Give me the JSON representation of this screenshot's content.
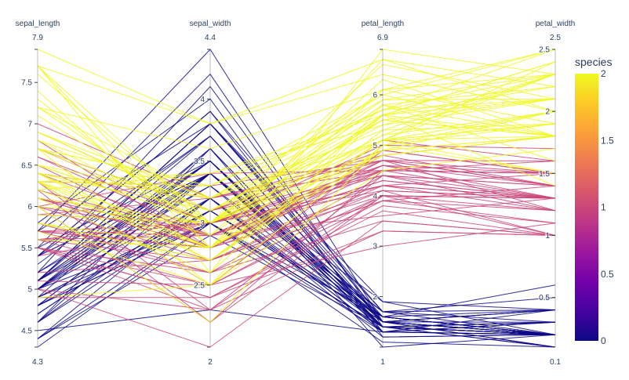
{
  "chart_data": {
    "type": "parallel_coordinates",
    "color_variable": "species",
    "axes": [
      {
        "key": "sepal_length",
        "label": "sepal_length",
        "range": [
          4.3,
          7.9
        ],
        "range_labels": [
          "4.3",
          "7.9"
        ],
        "ticks": [
          {
            "value": 4.5,
            "label": "4.5"
          },
          {
            "value": 5,
            "label": "5"
          },
          {
            "value": 5.5,
            "label": "5.5"
          },
          {
            "value": 6,
            "label": "6"
          },
          {
            "value": 6.5,
            "label": "6.5"
          },
          {
            "value": 7,
            "label": "7"
          },
          {
            "value": 7.5,
            "label": "7.5"
          }
        ]
      },
      {
        "key": "sepal_width",
        "label": "sepal_width",
        "range": [
          2,
          4.4
        ],
        "range_labels": [
          "2",
          "4.4"
        ],
        "ticks": [
          {
            "value": 2.5,
            "label": "2.5"
          },
          {
            "value": 3,
            "label": "3"
          },
          {
            "value": 3.5,
            "label": "3.5"
          },
          {
            "value": 4,
            "label": "4"
          }
        ]
      },
      {
        "key": "petal_length",
        "label": "petal_length",
        "range": [
          1,
          6.9
        ],
        "range_labels": [
          "1",
          "6.9"
        ],
        "ticks": [
          {
            "value": 2,
            "label": "2"
          },
          {
            "value": 3,
            "label": "3"
          },
          {
            "value": 4,
            "label": "4"
          },
          {
            "value": 5,
            "label": "5"
          },
          {
            "value": 6,
            "label": "6"
          }
        ]
      },
      {
        "key": "petal_width",
        "label": "petal_width",
        "range": [
          0.1,
          2.5
        ],
        "range_labels": [
          "0.1",
          "2.5"
        ],
        "ticks": [
          {
            "value": 0.5,
            "label": "0.5"
          },
          {
            "value": 1,
            "label": "1"
          },
          {
            "value": 1.5,
            "label": "1.5"
          },
          {
            "value": 2,
            "label": "2"
          },
          {
            "value": 2.5,
            "label": "2.5"
          }
        ]
      }
    ],
    "colorbar": {
      "title": "species",
      "range": [
        0,
        2
      ],
      "ticks": [
        {
          "value": 0,
          "label": "0"
        },
        {
          "value": 0.5,
          "label": "0.5"
        },
        {
          "value": 1,
          "label": "1"
        },
        {
          "value": 1.5,
          "label": "1.5"
        },
        {
          "value": 2,
          "label": "2"
        }
      ],
      "colorscale": [
        "#0d0887",
        "#46039f",
        "#7201a8",
        "#9c179e",
        "#bd3786",
        "#d8576b",
        "#ed7953",
        "#fb9f3a",
        "#fdca26",
        "#f0f921"
      ]
    },
    "records": [
      [
        5.1,
        3.5,
        1.4,
        0.2,
        0
      ],
      [
        4.9,
        3.0,
        1.4,
        0.2,
        0
      ],
      [
        4.7,
        3.2,
        1.3,
        0.2,
        0
      ],
      [
        4.6,
        3.1,
        1.5,
        0.2,
        0
      ],
      [
        5.0,
        3.6,
        1.4,
        0.2,
        0
      ],
      [
        5.4,
        3.9,
        1.7,
        0.4,
        0
      ],
      [
        4.6,
        3.4,
        1.4,
        0.3,
        0
      ],
      [
        5.0,
        3.4,
        1.5,
        0.2,
        0
      ],
      [
        4.4,
        2.9,
        1.4,
        0.2,
        0
      ],
      [
        4.9,
        3.1,
        1.5,
        0.1,
        0
      ],
      [
        5.4,
        3.7,
        1.5,
        0.2,
        0
      ],
      [
        4.8,
        3.4,
        1.6,
        0.2,
        0
      ],
      [
        4.8,
        3.0,
        1.4,
        0.1,
        0
      ],
      [
        4.3,
        3.0,
        1.1,
        0.1,
        0
      ],
      [
        5.8,
        4.0,
        1.2,
        0.2,
        0
      ],
      [
        5.7,
        4.4,
        1.5,
        0.4,
        0
      ],
      [
        5.4,
        3.9,
        1.3,
        0.4,
        0
      ],
      [
        5.1,
        3.5,
        1.4,
        0.3,
        0
      ],
      [
        5.7,
        3.8,
        1.7,
        0.3,
        0
      ],
      [
        5.1,
        3.8,
        1.5,
        0.3,
        0
      ],
      [
        5.4,
        3.4,
        1.7,
        0.2,
        0
      ],
      [
        5.1,
        3.7,
        1.5,
        0.4,
        0
      ],
      [
        4.6,
        3.6,
        1.0,
        0.2,
        0
      ],
      [
        5.1,
        3.3,
        1.7,
        0.5,
        0
      ],
      [
        4.8,
        3.4,
        1.9,
        0.2,
        0
      ],
      [
        5.0,
        3.0,
        1.6,
        0.2,
        0
      ],
      [
        5.0,
        3.4,
        1.6,
        0.4,
        0
      ],
      [
        5.2,
        3.5,
        1.5,
        0.2,
        0
      ],
      [
        5.2,
        3.4,
        1.4,
        0.2,
        0
      ],
      [
        4.7,
        3.2,
        1.6,
        0.2,
        0
      ],
      [
        4.8,
        3.1,
        1.6,
        0.2,
        0
      ],
      [
        5.4,
        3.4,
        1.5,
        0.4,
        0
      ],
      [
        5.2,
        4.1,
        1.5,
        0.1,
        0
      ],
      [
        5.5,
        4.2,
        1.4,
        0.2,
        0
      ],
      [
        4.9,
        3.1,
        1.5,
        0.2,
        0
      ],
      [
        5.0,
        3.2,
        1.2,
        0.2,
        0
      ],
      [
        5.5,
        3.5,
        1.3,
        0.2,
        0
      ],
      [
        4.9,
        3.6,
        1.4,
        0.1,
        0
      ],
      [
        4.4,
        3.0,
        1.3,
        0.2,
        0
      ],
      [
        5.1,
        3.4,
        1.5,
        0.2,
        0
      ],
      [
        5.0,
        3.5,
        1.3,
        0.3,
        0
      ],
      [
        4.5,
        2.3,
        1.3,
        0.3,
        0
      ],
      [
        4.4,
        3.2,
        1.3,
        0.2,
        0
      ],
      [
        5.0,
        3.5,
        1.6,
        0.6,
        0
      ],
      [
        5.1,
        3.8,
        1.9,
        0.4,
        0
      ],
      [
        4.8,
        3.0,
        1.4,
        0.3,
        0
      ],
      [
        5.1,
        3.8,
        1.6,
        0.2,
        0
      ],
      [
        4.6,
        3.2,
        1.4,
        0.2,
        0
      ],
      [
        5.3,
        3.7,
        1.5,
        0.2,
        0
      ],
      [
        5.0,
        3.3,
        1.4,
        0.2,
        0
      ],
      [
        7.0,
        3.2,
        4.7,
        1.4,
        1
      ],
      [
        6.4,
        3.2,
        4.5,
        1.5,
        1
      ],
      [
        6.9,
        3.1,
        4.9,
        1.5,
        1
      ],
      [
        5.5,
        2.3,
        4.0,
        1.3,
        1
      ],
      [
        6.5,
        2.8,
        4.6,
        1.5,
        1
      ],
      [
        5.7,
        2.8,
        4.5,
        1.3,
        1
      ],
      [
        6.3,
        3.3,
        4.7,
        1.6,
        1
      ],
      [
        4.9,
        2.4,
        3.3,
        1.0,
        1
      ],
      [
        6.6,
        2.9,
        4.6,
        1.3,
        1
      ],
      [
        5.2,
        2.7,
        3.9,
        1.4,
        1
      ],
      [
        5.0,
        2.0,
        3.5,
        1.0,
        1
      ],
      [
        5.9,
        3.0,
        4.2,
        1.5,
        1
      ],
      [
        6.0,
        2.2,
        4.0,
        1.0,
        1
      ],
      [
        6.1,
        2.9,
        4.7,
        1.4,
        1
      ],
      [
        5.6,
        2.9,
        3.6,
        1.3,
        1
      ],
      [
        6.7,
        3.1,
        4.4,
        1.4,
        1
      ],
      [
        5.6,
        3.0,
        4.5,
        1.5,
        1
      ],
      [
        5.8,
        2.7,
        4.1,
        1.0,
        1
      ],
      [
        6.2,
        2.2,
        4.5,
        1.5,
        1
      ],
      [
        5.6,
        2.5,
        3.9,
        1.1,
        1
      ],
      [
        5.9,
        3.2,
        4.8,
        1.8,
        1
      ],
      [
        6.1,
        2.8,
        4.0,
        1.3,
        1
      ],
      [
        6.3,
        2.5,
        4.9,
        1.5,
        1
      ],
      [
        6.1,
        2.8,
        4.7,
        1.2,
        1
      ],
      [
        6.4,
        2.9,
        4.3,
        1.3,
        1
      ],
      [
        6.6,
        3.0,
        4.4,
        1.4,
        1
      ],
      [
        6.8,
        2.8,
        4.8,
        1.4,
        1
      ],
      [
        6.7,
        3.0,
        5.0,
        1.7,
        1
      ],
      [
        6.0,
        2.9,
        4.5,
        1.5,
        1
      ],
      [
        5.7,
        2.6,
        3.5,
        1.0,
        1
      ],
      [
        5.5,
        2.4,
        3.8,
        1.1,
        1
      ],
      [
        5.5,
        2.4,
        3.7,
        1.0,
        1
      ],
      [
        5.8,
        2.7,
        3.9,
        1.2,
        1
      ],
      [
        6.0,
        2.7,
        5.1,
        1.6,
        1
      ],
      [
        5.4,
        3.0,
        4.5,
        1.5,
        1
      ],
      [
        6.0,
        3.4,
        4.5,
        1.6,
        1
      ],
      [
        6.7,
        3.1,
        4.7,
        1.5,
        1
      ],
      [
        6.3,
        2.3,
        4.4,
        1.3,
        1
      ],
      [
        5.6,
        3.0,
        4.1,
        1.3,
        1
      ],
      [
        5.5,
        2.5,
        4.0,
        1.3,
        1
      ],
      [
        5.5,
        2.6,
        4.4,
        1.2,
        1
      ],
      [
        6.1,
        3.0,
        4.6,
        1.4,
        1
      ],
      [
        5.8,
        2.6,
        4.0,
        1.2,
        1
      ],
      [
        5.0,
        2.3,
        3.3,
        1.0,
        1
      ],
      [
        5.6,
        2.7,
        4.2,
        1.3,
        1
      ],
      [
        5.7,
        3.0,
        4.2,
        1.2,
        1
      ],
      [
        5.7,
        2.9,
        4.2,
        1.3,
        1
      ],
      [
        6.2,
        2.9,
        4.3,
        1.3,
        1
      ],
      [
        5.1,
        2.5,
        3.0,
        1.1,
        1
      ],
      [
        5.7,
        2.8,
        4.1,
        1.3,
        1
      ],
      [
        6.3,
        3.3,
        6.0,
        2.5,
        2
      ],
      [
        5.8,
        2.7,
        5.1,
        1.9,
        2
      ],
      [
        7.1,
        3.0,
        5.9,
        2.1,
        2
      ],
      [
        6.3,
        2.9,
        5.6,
        1.8,
        2
      ],
      [
        6.5,
        3.0,
        5.8,
        2.2,
        2
      ],
      [
        7.6,
        3.0,
        6.6,
        2.1,
        2
      ],
      [
        4.9,
        2.5,
        4.5,
        1.7,
        2
      ],
      [
        7.3,
        2.9,
        6.3,
        1.8,
        2
      ],
      [
        6.7,
        2.5,
        5.8,
        1.8,
        2
      ],
      [
        7.2,
        3.6,
        6.1,
        2.5,
        2
      ],
      [
        6.5,
        3.2,
        5.1,
        2.0,
        2
      ],
      [
        6.4,
        2.7,
        5.3,
        1.9,
        2
      ],
      [
        6.8,
        3.0,
        5.5,
        2.1,
        2
      ],
      [
        5.7,
        2.5,
        5.0,
        2.0,
        2
      ],
      [
        5.8,
        2.8,
        5.1,
        2.4,
        2
      ],
      [
        6.4,
        3.2,
        5.3,
        2.3,
        2
      ],
      [
        6.5,
        3.0,
        5.5,
        1.8,
        2
      ],
      [
        7.7,
        3.8,
        6.7,
        2.2,
        2
      ],
      [
        7.7,
        2.6,
        6.9,
        2.3,
        2
      ],
      [
        6.0,
        2.2,
        5.0,
        1.5,
        2
      ],
      [
        6.9,
        3.2,
        5.7,
        2.3,
        2
      ],
      [
        5.6,
        2.8,
        4.9,
        2.0,
        2
      ],
      [
        7.7,
        2.8,
        6.7,
        2.0,
        2
      ],
      [
        6.3,
        2.7,
        4.9,
        1.8,
        2
      ],
      [
        6.7,
        3.3,
        5.7,
        2.1,
        2
      ],
      [
        7.2,
        3.2,
        6.0,
        1.8,
        2
      ],
      [
        6.2,
        2.8,
        4.8,
        1.8,
        2
      ],
      [
        6.1,
        3.0,
        4.9,
        1.8,
        2
      ],
      [
        6.4,
        2.8,
        5.6,
        2.1,
        2
      ],
      [
        7.2,
        3.0,
        5.8,
        1.6,
        2
      ],
      [
        7.4,
        2.8,
        6.1,
        1.9,
        2
      ],
      [
        7.9,
        3.8,
        6.4,
        2.0,
        2
      ],
      [
        6.4,
        2.8,
        5.6,
        2.2,
        2
      ],
      [
        6.3,
        2.8,
        5.1,
        1.5,
        2
      ],
      [
        6.1,
        2.6,
        5.6,
        1.4,
        2
      ],
      [
        7.7,
        3.0,
        6.1,
        2.3,
        2
      ],
      [
        6.3,
        3.4,
        5.6,
        2.4,
        2
      ],
      [
        6.4,
        3.1,
        5.5,
        1.8,
        2
      ],
      [
        6.0,
        3.0,
        4.8,
        1.8,
        2
      ],
      [
        6.9,
        3.1,
        5.4,
        2.1,
        2
      ],
      [
        6.7,
        3.1,
        5.6,
        2.4,
        2
      ],
      [
        6.9,
        3.1,
        5.1,
        2.3,
        2
      ],
      [
        5.8,
        2.7,
        5.1,
        1.9,
        2
      ],
      [
        6.8,
        3.2,
        5.9,
        2.3,
        2
      ],
      [
        6.7,
        3.3,
        5.7,
        2.5,
        2
      ],
      [
        6.7,
        3.0,
        5.2,
        2.3,
        2
      ],
      [
        6.3,
        2.5,
        5.0,
        1.9,
        2
      ],
      [
        6.5,
        3.0,
        5.2,
        2.0,
        2
      ],
      [
        6.2,
        3.4,
        5.4,
        2.3,
        2
      ],
      [
        5.9,
        3.0,
        5.1,
        1.8,
        2
      ]
    ]
  }
}
